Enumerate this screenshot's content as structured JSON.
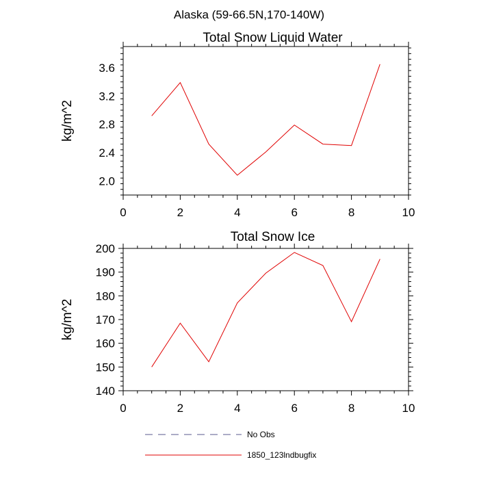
{
  "figure": {
    "title": "Alaska (59-66.5N,170-140W)"
  },
  "legend": {
    "items": [
      {
        "label": "No Obs",
        "color": "#5a5a8c",
        "dashed": true
      },
      {
        "label": "1850_123lndbugfix",
        "color": "#e00000",
        "dashed": false
      }
    ]
  },
  "chart_data": [
    {
      "type": "line",
      "title": "Total Snow Liquid Water",
      "xlabel": "",
      "ylabel": "kg/m^2",
      "xlim": [
        0,
        10
      ],
      "ylim": [
        1.8,
        3.9
      ],
      "xticks": [
        0,
        2,
        4,
        6,
        8,
        10
      ],
      "yticks": [
        2.0,
        2.4,
        2.8,
        3.2,
        3.6
      ],
      "ytick_labels": [
        "2.0",
        "2.4",
        "2.8",
        "3.2",
        "3.6"
      ],
      "grid": false,
      "series": [
        {
          "name": "1850_123lndbugfix",
          "color": "#e00000",
          "x": [
            1,
            2,
            3,
            4,
            5,
            6,
            7,
            8,
            9
          ],
          "values": [
            2.92,
            3.39,
            2.52,
            2.08,
            2.41,
            2.79,
            2.52,
            2.5,
            3.65
          ]
        }
      ]
    },
    {
      "type": "line",
      "title": "Total Snow Ice",
      "xlabel": "",
      "ylabel": "kg/m^2",
      "xlim": [
        0,
        10
      ],
      "ylim": [
        140,
        200
      ],
      "xticks": [
        0,
        2,
        4,
        6,
        8,
        10
      ],
      "yticks": [
        140,
        150,
        160,
        170,
        180,
        190,
        200
      ],
      "ytick_labels": [
        "140",
        "150",
        "160",
        "170",
        "180",
        "190",
        "200"
      ],
      "grid": false,
      "series": [
        {
          "name": "1850_123lndbugfix",
          "color": "#e00000",
          "x": [
            1,
            2,
            3,
            4,
            5,
            6,
            7,
            8,
            9
          ],
          "values": [
            150.0,
            168.5,
            152.2,
            177.0,
            189.6,
            198.3,
            192.8,
            169.1,
            195.5
          ]
        }
      ]
    }
  ]
}
